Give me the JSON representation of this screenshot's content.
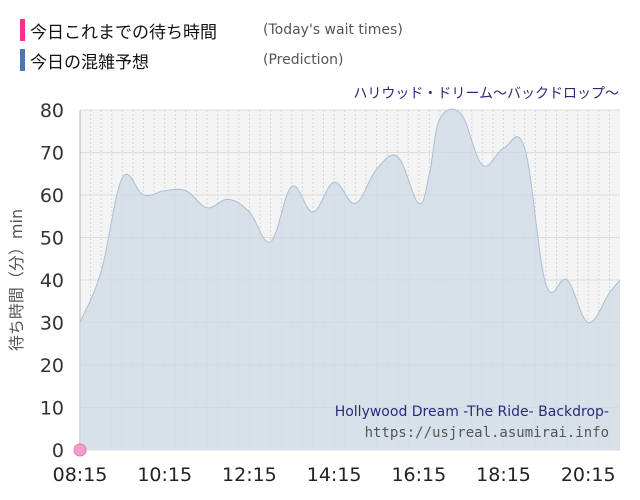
{
  "legend": [
    {
      "label": "今日これまでの待ち時間",
      "sub": "(Today's wait times)",
      "color": "#ff2f92"
    },
    {
      "label": "今日の混雑予想",
      "sub": "(Prediction)",
      "color": "#4a7ab0"
    }
  ],
  "attraction_jp": "ハリウッド・ドリーム〜バックドロップ〜",
  "attraction_en": "Hollywood Dream -The Ride- Backdrop-",
  "source": "https://usjreal.asumirai.info",
  "chart_data": {
    "type": "area",
    "ylabel": "待ち時間（分）min",
    "xlabel": "",
    "ylim": [
      0,
      80
    ],
    "xlim": [
      "08:15",
      "21:00"
    ],
    "yticks": [
      0,
      10,
      20,
      30,
      40,
      50,
      60,
      70,
      80
    ],
    "xticks": [
      "08:15",
      "10:15",
      "12:15",
      "14:15",
      "16:15",
      "18:15",
      "20:15"
    ],
    "grid": true,
    "series": [
      {
        "name": "今日の混雑予想",
        "color": "#c9d6e3",
        "x": [
          "08:15",
          "08:45",
          "09:15",
          "09:45",
          "10:15",
          "10:45",
          "11:15",
          "11:45",
          "12:15",
          "12:45",
          "13:15",
          "13:45",
          "14:15",
          "14:45",
          "15:15",
          "15:45",
          "16:15",
          "16:30",
          "16:45",
          "17:15",
          "17:45",
          "18:15",
          "18:45",
          "19:15",
          "19:45",
          "20:15",
          "20:45",
          "21:00"
        ],
        "values": [
          30,
          42,
          64,
          60,
          61,
          61,
          57,
          59,
          56,
          49,
          62,
          56,
          63,
          58,
          66,
          69,
          58,
          65,
          78,
          79,
          67,
          71,
          71,
          39,
          40,
          30,
          37,
          40
        ]
      },
      {
        "name": "今日これまでの待ち時間",
        "color": "#ff2f92",
        "x": [
          "08:15"
        ],
        "values": [
          0
        ]
      }
    ]
  }
}
